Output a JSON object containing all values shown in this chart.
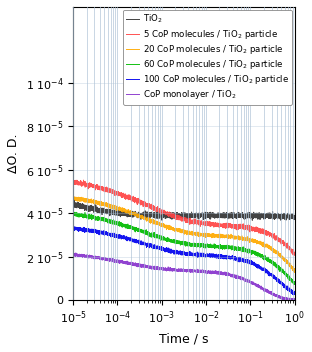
{
  "xlim": [
    1e-05,
    1.0
  ],
  "ylim": [
    0,
    0.000135
  ],
  "xlabel": "Time / s",
  "ylabel": "ΔO. D.",
  "ytick_positions": [
    0,
    2e-05,
    4e-05,
    6e-05,
    8e-05,
    0.0001
  ],
  "ytick_labels": [
    "0",
    "2 10$^{-5}$",
    "4 10$^{-5}$",
    "6 10$^{-5}$",
    "8 10$^{-5}$",
    "1 10$^{-4}$"
  ],
  "lines": [
    {
      "label": "TiO$_2$",
      "color": "#333333",
      "A": 6.5e-05,
      "alpha1": 0.02,
      "alpha2": 50.0,
      "beta": 0.3,
      "noise": 6e-07
    },
    {
      "label": "5 CoP molecules / TiO$_2$ particle",
      "color": "#ff4444",
      "A": 5.8e-05,
      "alpha1": 0.5,
      "alpha2": 30.0,
      "beta": 0.45,
      "noise": 5e-07
    },
    {
      "label": "20 CoP molecules / TiO$_2$ particle",
      "color": "#ffaa00",
      "A": 5e-05,
      "alpha1": 0.8,
      "alpha2": 40.0,
      "beta": 0.48,
      "noise": 4e-07
    },
    {
      "label": "60 CoP molecules / TiO$_2$ particle",
      "color": "#00bb00",
      "A": 4.2e-05,
      "alpha1": 1.2,
      "alpha2": 50.0,
      "beta": 0.5,
      "noise": 4e-07
    },
    {
      "label": "100 CoP molecules / TiO$_2$ particle",
      "color": "#0000ee",
      "A": 3.5e-05,
      "alpha1": 2.0,
      "alpha2": 60.0,
      "beta": 0.52,
      "noise": 4e-07
    },
    {
      "label": "CoP monolayer / TiO$_2$",
      "color": "#8833cc",
      "A": 2.3e-05,
      "alpha1": 5.0,
      "alpha2": 80.0,
      "beta": 0.5,
      "noise": 3e-07
    }
  ],
  "grid_color": "#b0c4d8",
  "background_color": "#ffffff",
  "legend_loc": "upper right",
  "legend_fontsize": 6.2,
  "tick_fontsize": 8,
  "label_fontsize": 9,
  "linewidth": 0.7
}
